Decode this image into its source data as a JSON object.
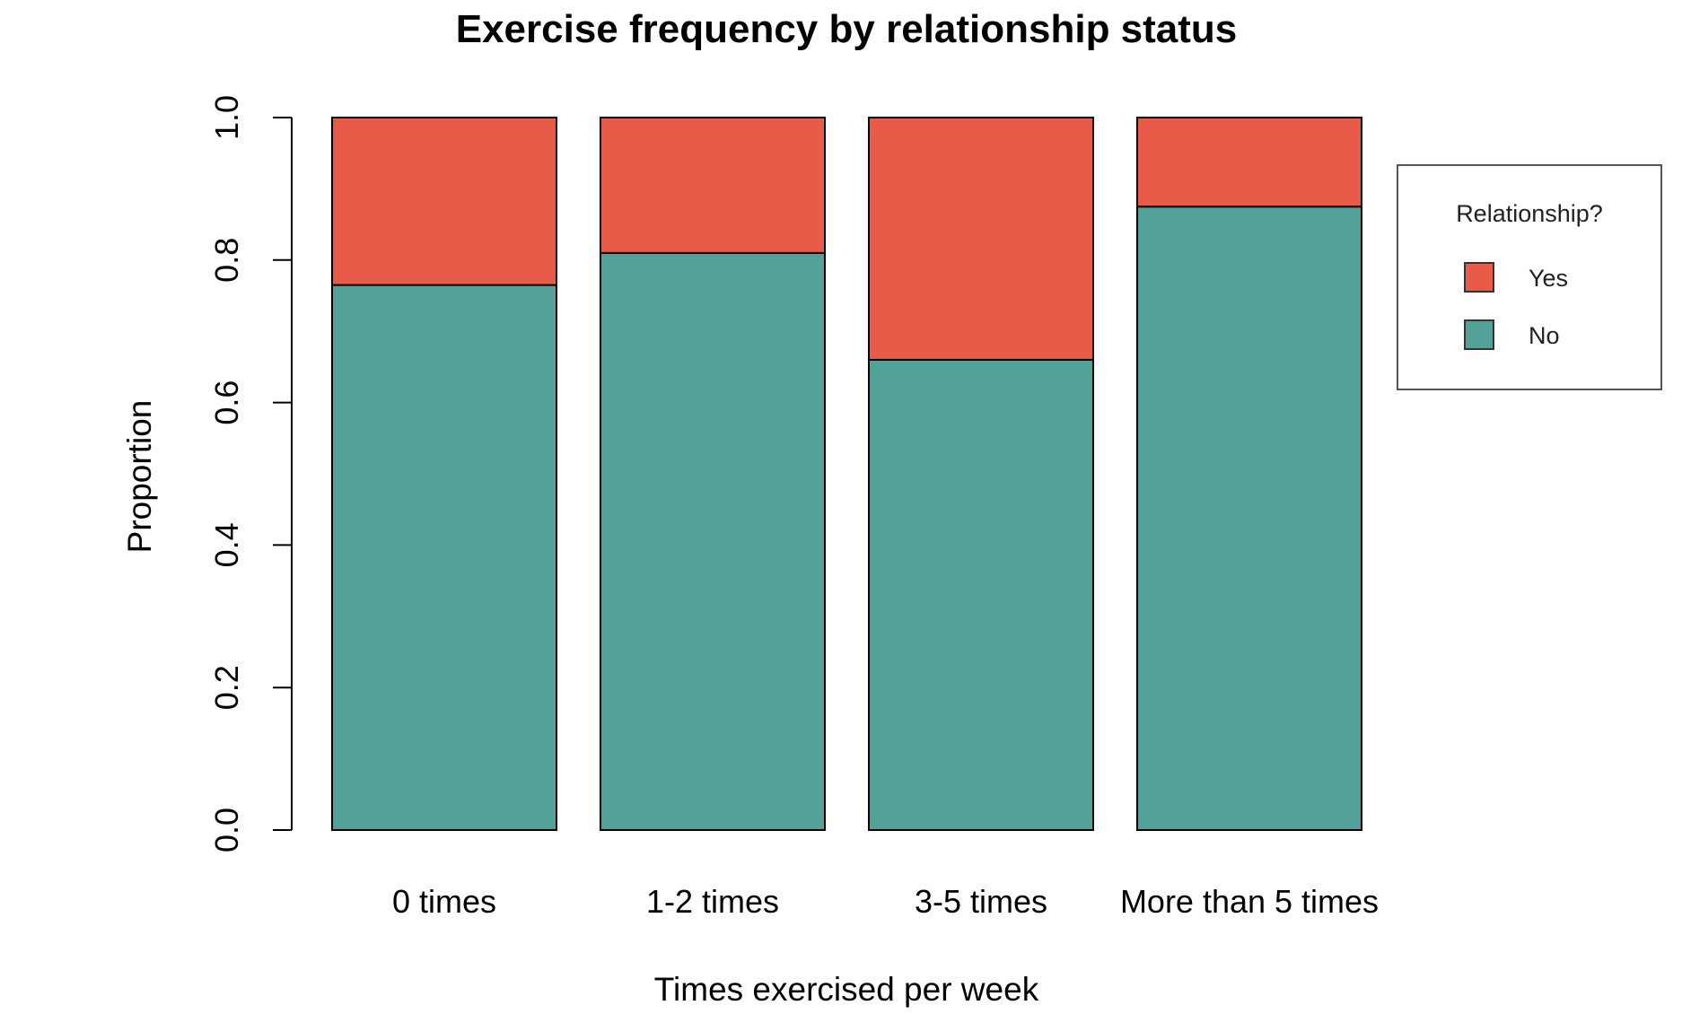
{
  "chart_data": {
    "type": "bar",
    "stacked": true,
    "title": "Exercise frequency by relationship status",
    "xlabel": "Times exercised per week",
    "ylabel": "Proportion",
    "categories": [
      "0 times",
      "1-2 times",
      "3-5 times",
      "More than 5 times"
    ],
    "series": [
      {
        "name": "No",
        "color": "#52a29a",
        "values": [
          0.765,
          0.81,
          0.66,
          0.875
        ]
      },
      {
        "name": "Yes",
        "color": "#e85b48",
        "values": [
          0.235,
          0.19,
          0.34,
          0.125
        ]
      }
    ],
    "ylim": [
      0,
      1
    ],
    "yticks": [
      0,
      0.2,
      0.4,
      0.6,
      0.8,
      1
    ],
    "ytick_labels": [
      "0.0",
      "0.2",
      "0.4",
      "0.6",
      "0.8",
      "1.0"
    ],
    "grid": false,
    "legend": {
      "title": "Relationship?",
      "placement": "right",
      "entries": [
        {
          "label": "Yes",
          "color": "#e85b48"
        },
        {
          "label": "No",
          "color": "#52a29a"
        }
      ]
    }
  }
}
